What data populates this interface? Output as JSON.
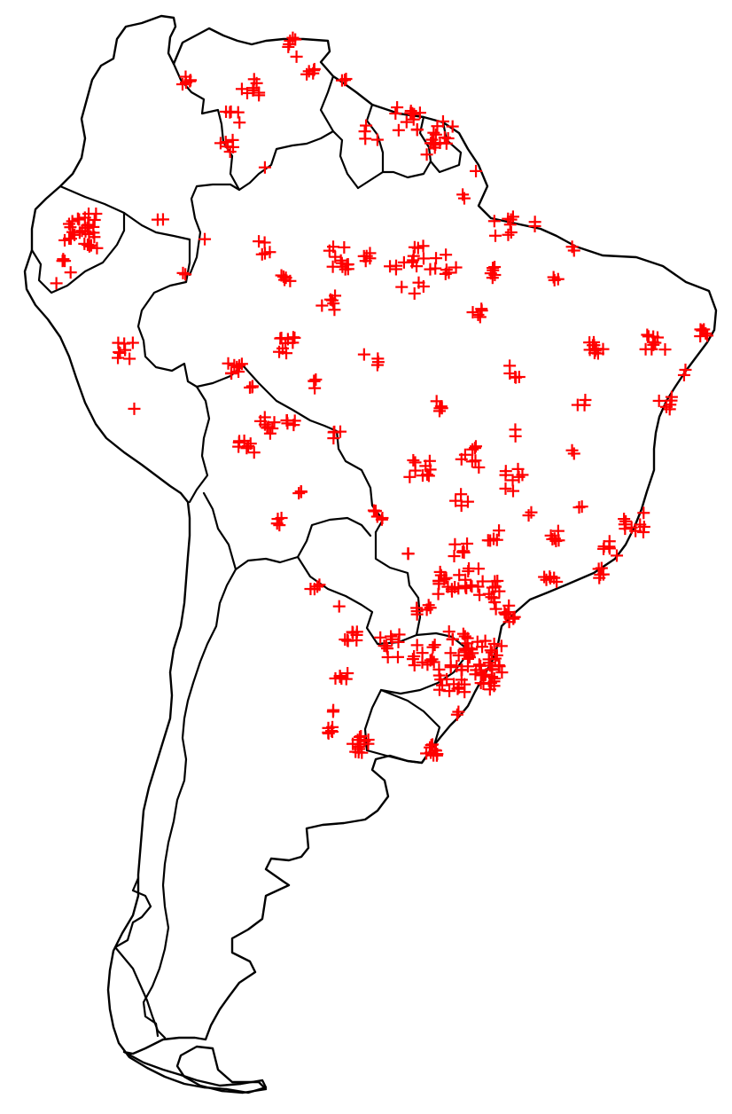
{
  "map": {
    "region": "South America",
    "background_color": "#ffffff",
    "outline_color": "#000000",
    "marker_symbol": "plus",
    "marker_color": "#ff0000",
    "marker_count": 520
  }
}
